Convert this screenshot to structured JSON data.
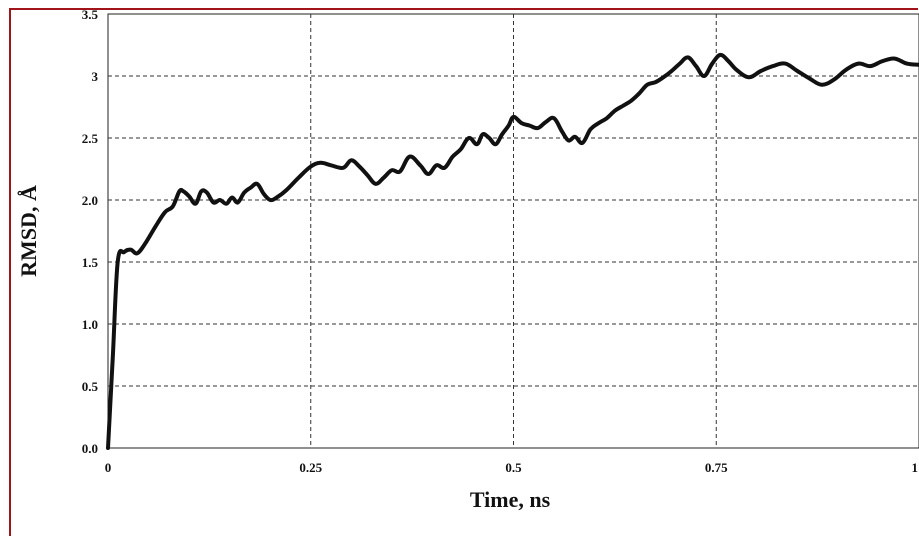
{
  "chart_data": {
    "type": "line",
    "title": "",
    "xlabel": "Time, ns",
    "ylabel": "RMSD, Å",
    "xlim": [
      0,
      1
    ],
    "ylim": [
      0,
      3.5
    ],
    "grid": true,
    "x_tick_labels": [
      "0",
      "0.25",
      "0.5",
      "0.75",
      "1"
    ],
    "y_tick_labels": [
      "0.0",
      "0.5",
      "1.0",
      "1.5",
      "2.0",
      "2.5",
      "3",
      "3.5"
    ],
    "series": [
      {
        "color": "#111111",
        "x": [
          0.0,
          0.006,
          0.012,
          0.02,
          0.028,
          0.036,
          0.046,
          0.058,
          0.07,
          0.08,
          0.088,
          0.093,
          0.1,
          0.108,
          0.115,
          0.122,
          0.13,
          0.138,
          0.146,
          0.153,
          0.16,
          0.168,
          0.176,
          0.184,
          0.192,
          0.2,
          0.208,
          0.22,
          0.235,
          0.25,
          0.262,
          0.275,
          0.29,
          0.3,
          0.31,
          0.32,
          0.33,
          0.34,
          0.35,
          0.36,
          0.372,
          0.385,
          0.395,
          0.405,
          0.415,
          0.425,
          0.435,
          0.445,
          0.455,
          0.462,
          0.47,
          0.478,
          0.486,
          0.494,
          0.5,
          0.51,
          0.52,
          0.53,
          0.54,
          0.55,
          0.56,
          0.568,
          0.576,
          0.585,
          0.595,
          0.605,
          0.615,
          0.625,
          0.635,
          0.645,
          0.655,
          0.665,
          0.675,
          0.685,
          0.695,
          0.705,
          0.715,
          0.725,
          0.735,
          0.745,
          0.755,
          0.765,
          0.775,
          0.79,
          0.805,
          0.82,
          0.835,
          0.85,
          0.865,
          0.88,
          0.895,
          0.91,
          0.925,
          0.94,
          0.955,
          0.97,
          0.985,
          1.0
        ],
        "values": [
          0.0,
          0.75,
          1.5,
          1.58,
          1.6,
          1.57,
          1.65,
          1.78,
          1.9,
          1.95,
          2.07,
          2.07,
          2.03,
          1.97,
          2.07,
          2.06,
          1.98,
          2.0,
          1.97,
          2.02,
          1.98,
          2.06,
          2.1,
          2.13,
          2.05,
          2.0,
          2.02,
          2.08,
          2.18,
          2.27,
          2.3,
          2.28,
          2.26,
          2.32,
          2.27,
          2.2,
          2.13,
          2.18,
          2.24,
          2.23,
          2.35,
          2.28,
          2.21,
          2.28,
          2.26,
          2.35,
          2.41,
          2.5,
          2.45,
          2.53,
          2.5,
          2.45,
          2.53,
          2.6,
          2.67,
          2.62,
          2.6,
          2.58,
          2.63,
          2.66,
          2.55,
          2.48,
          2.51,
          2.46,
          2.57,
          2.62,
          2.66,
          2.72,
          2.76,
          2.8,
          2.86,
          2.93,
          2.95,
          2.99,
          3.04,
          3.1,
          3.15,
          3.08,
          3.0,
          3.1,
          3.17,
          3.12,
          3.05,
          2.99,
          3.04,
          3.08,
          3.1,
          3.04,
          2.98,
          2.93,
          2.97,
          3.05,
          3.1,
          3.08,
          3.12,
          3.14,
          3.1,
          3.09
        ]
      }
    ]
  }
}
